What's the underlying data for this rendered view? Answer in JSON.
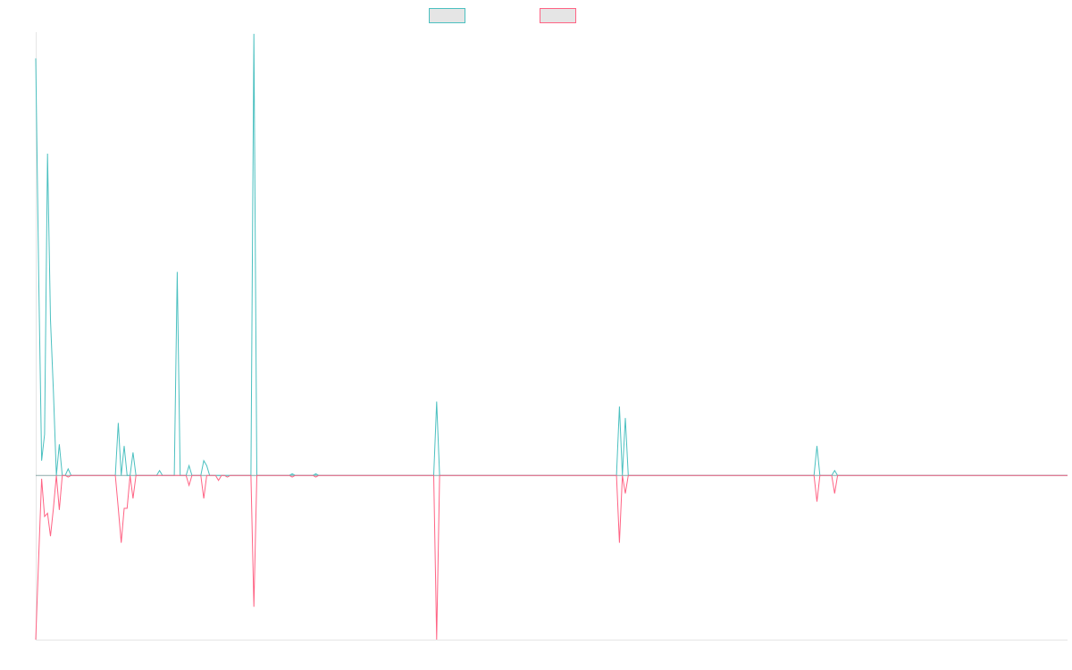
{
  "colors": {
    "series_a": "#4bc0c0",
    "series_b": "#ff6384",
    "legend_fill": "#e5e5e5",
    "axis": "#e5e5e5",
    "zero_line": "#8aa8a8",
    "background": "#ffffff"
  },
  "chart_data": {
    "type": "line",
    "title": "",
    "xlabel": "",
    "ylabel": "",
    "grid": false,
    "legend": "top-center",
    "ylim": [
      -100,
      270
    ],
    "x_count": 350,
    "series": [
      {
        "color": "#4bc0c0",
        "points": [
          [
            0,
            254
          ],
          [
            1,
            122
          ],
          [
            2,
            9
          ],
          [
            3,
            25
          ],
          [
            4,
            196
          ],
          [
            5,
            95
          ],
          [
            6,
            51
          ],
          [
            7,
            0
          ],
          [
            8,
            19
          ],
          [
            9,
            0
          ],
          [
            10,
            0
          ],
          [
            11,
            4
          ],
          [
            12,
            0
          ],
          [
            13,
            0
          ],
          [
            27,
            0
          ],
          [
            28,
            32
          ],
          [
            29,
            0
          ],
          [
            30,
            18
          ],
          [
            31,
            0
          ],
          [
            32,
            0
          ],
          [
            33,
            14
          ],
          [
            34,
            0
          ],
          [
            35,
            0
          ],
          [
            36,
            0
          ],
          [
            37,
            0
          ],
          [
            38,
            0
          ],
          [
            39,
            0
          ],
          [
            40,
            0
          ],
          [
            41,
            0
          ],
          [
            42,
            3
          ],
          [
            43,
            0
          ],
          [
            47,
            0
          ],
          [
            48,
            124
          ],
          [
            49,
            0
          ],
          [
            50,
            0
          ],
          [
            51,
            0
          ],
          [
            52,
            6
          ],
          [
            53,
            0
          ],
          [
            54,
            0
          ],
          [
            55,
            0
          ],
          [
            56,
            0
          ],
          [
            57,
            9
          ],
          [
            58,
            6
          ],
          [
            59,
            0
          ],
          [
            60,
            0
          ],
          [
            61,
            0
          ],
          [
            62,
            0
          ],
          [
            63,
            0
          ],
          [
            64,
            0
          ],
          [
            65,
            0
          ],
          [
            66,
            0
          ],
          [
            73,
            0
          ],
          [
            74,
            269
          ],
          [
            75,
            0
          ],
          [
            86,
            0
          ],
          [
            87,
            1
          ],
          [
            88,
            0
          ],
          [
            94,
            0
          ],
          [
            95,
            1
          ],
          [
            96,
            0
          ],
          [
            135,
            0
          ],
          [
            136,
            45
          ],
          [
            137,
            0
          ],
          [
            197,
            0
          ],
          [
            198,
            42
          ],
          [
            199,
            0
          ],
          [
            200,
            35
          ],
          [
            201,
            0
          ],
          [
            264,
            0
          ],
          [
            265,
            18
          ],
          [
            266,
            0
          ],
          [
            270,
            0
          ],
          [
            271,
            3
          ],
          [
            272,
            0
          ],
          [
            350,
            0
          ]
        ]
      },
      {
        "color": "#ff6384",
        "points": [
          [
            0,
            -100
          ],
          [
            1,
            -50
          ],
          [
            2,
            -2
          ],
          [
            3,
            -25
          ],
          [
            4,
            -23
          ],
          [
            5,
            -37
          ],
          [
            6,
            -20
          ],
          [
            7,
            0
          ],
          [
            8,
            -21
          ],
          [
            9,
            0
          ],
          [
            10,
            0
          ],
          [
            11,
            -1
          ],
          [
            12,
            0
          ],
          [
            13,
            0
          ],
          [
            27,
            0
          ],
          [
            28,
            -20
          ],
          [
            29,
            -41
          ],
          [
            30,
            -20
          ],
          [
            31,
            -20
          ],
          [
            32,
            0
          ],
          [
            33,
            -14
          ],
          [
            34,
            0
          ],
          [
            35,
            0
          ],
          [
            36,
            0
          ],
          [
            37,
            0
          ],
          [
            38,
            0
          ],
          [
            39,
            0
          ],
          [
            40,
            0
          ],
          [
            41,
            0
          ],
          [
            42,
            0
          ],
          [
            47,
            0
          ],
          [
            48,
            0
          ],
          [
            49,
            0
          ],
          [
            50,
            0
          ],
          [
            51,
            0
          ],
          [
            52,
            -6
          ],
          [
            53,
            0
          ],
          [
            54,
            0
          ],
          [
            55,
            0
          ],
          [
            56,
            0
          ],
          [
            57,
            -14
          ],
          [
            58,
            0
          ],
          [
            59,
            0
          ],
          [
            60,
            0
          ],
          [
            61,
            0
          ],
          [
            62,
            -3
          ],
          [
            63,
            0
          ],
          [
            64,
            0
          ],
          [
            65,
            -1
          ],
          [
            66,
            0
          ],
          [
            73,
            0
          ],
          [
            74,
            -80
          ],
          [
            75,
            0
          ],
          [
            86,
            0
          ],
          [
            87,
            -1
          ],
          [
            88,
            0
          ],
          [
            94,
            0
          ],
          [
            95,
            -1
          ],
          [
            96,
            0
          ],
          [
            135,
            0
          ],
          [
            136,
            -100
          ],
          [
            137,
            0
          ],
          [
            197,
            0
          ],
          [
            198,
            -41
          ],
          [
            199,
            0
          ],
          [
            200,
            -11
          ],
          [
            201,
            0
          ],
          [
            264,
            0
          ],
          [
            265,
            -16
          ],
          [
            266,
            0
          ],
          [
            270,
            0
          ],
          [
            271,
            -11
          ],
          [
            272,
            0
          ],
          [
            350,
            0
          ]
        ]
      }
    ]
  }
}
